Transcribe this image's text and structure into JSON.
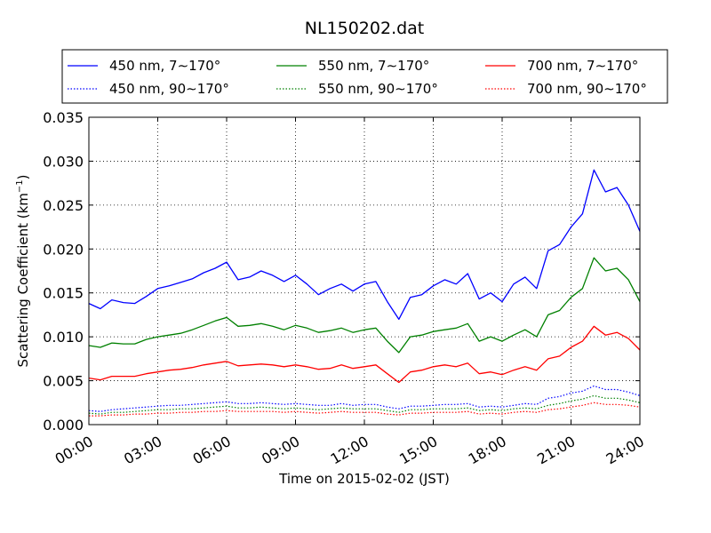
{
  "chart_data": {
    "type": "line",
    "title": "NL150202.dat",
    "xlabel": "Time on 2015-02-02 (JST)",
    "ylabel_main": "Scattering Coefficient (km",
    "ylabel_sup": "−1",
    "ylabel_end": ")",
    "xlim": [
      0,
      24
    ],
    "ylim": [
      0,
      0.035
    ],
    "grid": true,
    "legend_position": "top",
    "xticks": [
      0,
      3,
      6,
      9,
      12,
      15,
      18,
      21,
      24
    ],
    "xtick_labels": [
      "00:00",
      "03:00",
      "06:00",
      "09:00",
      "12:00",
      "15:00",
      "18:00",
      "21:00",
      "24:00"
    ],
    "yticks": [
      0,
      0.005,
      0.01,
      0.015,
      0.02,
      0.025,
      0.03,
      0.035
    ],
    "ytick_labels": [
      "0.000",
      "0.005",
      "0.010",
      "0.015",
      "0.020",
      "0.025",
      "0.030",
      "0.035"
    ],
    "x": [
      0,
      0.5,
      1,
      1.5,
      2,
      2.5,
      3,
      3.5,
      4,
      4.5,
      5,
      5.5,
      6,
      6.5,
      7,
      7.5,
      8,
      8.5,
      9,
      9.5,
      10,
      10.5,
      11,
      11.5,
      12,
      12.5,
      13,
      13.5,
      14,
      14.5,
      15,
      15.5,
      16,
      16.5,
      17,
      17.5,
      18,
      18.5,
      19,
      19.5,
      20,
      20.5,
      21,
      21.5,
      22,
      22.5,
      23,
      23.5,
      24
    ],
    "series": [
      {
        "name": "450 nm, 7∼170°",
        "color": "#0000ff",
        "style": "solid",
        "values": [
          0.0138,
          0.0132,
          0.0142,
          0.0139,
          0.0138,
          0.0146,
          0.0155,
          0.0158,
          0.0162,
          0.0166,
          0.0173,
          0.0178,
          0.0185,
          0.0165,
          0.0168,
          0.0175,
          0.017,
          0.0163,
          0.017,
          0.016,
          0.0148,
          0.0155,
          0.016,
          0.0152,
          0.016,
          0.0163,
          0.014,
          0.012,
          0.0145,
          0.0148,
          0.0158,
          0.0165,
          0.016,
          0.0172,
          0.0143,
          0.015,
          0.014,
          0.016,
          0.0168,
          0.0155,
          0.0198,
          0.0205,
          0.0225,
          0.024,
          0.029,
          0.0265,
          0.027,
          0.025,
          0.022
        ]
      },
      {
        "name": "550 nm, 7∼170°",
        "color": "#008000",
        "style": "solid",
        "values": [
          0.009,
          0.0088,
          0.0093,
          0.0092,
          0.0092,
          0.0097,
          0.01,
          0.0102,
          0.0104,
          0.0108,
          0.0113,
          0.0118,
          0.0122,
          0.0112,
          0.0113,
          0.0115,
          0.0112,
          0.0108,
          0.0113,
          0.011,
          0.0105,
          0.0107,
          0.011,
          0.0105,
          0.0108,
          0.011,
          0.0095,
          0.0082,
          0.01,
          0.0102,
          0.0106,
          0.0108,
          0.011,
          0.0115,
          0.0095,
          0.01,
          0.0095,
          0.0102,
          0.0108,
          0.01,
          0.0125,
          0.013,
          0.0145,
          0.0155,
          0.019,
          0.0175,
          0.0178,
          0.0165,
          0.014
        ]
      },
      {
        "name": "700 nm, 7∼170°",
        "color": "#ff0000",
        "style": "solid",
        "values": [
          0.0053,
          0.0051,
          0.0055,
          0.0055,
          0.0055,
          0.0058,
          0.006,
          0.0062,
          0.0063,
          0.0065,
          0.0068,
          0.007,
          0.0072,
          0.0067,
          0.0068,
          0.0069,
          0.0068,
          0.0066,
          0.0068,
          0.0066,
          0.0063,
          0.0064,
          0.0068,
          0.0064,
          0.0066,
          0.0068,
          0.0058,
          0.0048,
          0.006,
          0.0062,
          0.0066,
          0.0068,
          0.0066,
          0.007,
          0.0058,
          0.006,
          0.0057,
          0.0062,
          0.0066,
          0.0062,
          0.0075,
          0.0078,
          0.0088,
          0.0095,
          0.0112,
          0.0102,
          0.0105,
          0.0098,
          0.0085
        ]
      },
      {
        "name": "450 nm, 90∼170°",
        "color": "#0000ff",
        "style": "dotted",
        "values": [
          0.0016,
          0.0015,
          0.0017,
          0.0018,
          0.0019,
          0.002,
          0.0021,
          0.0022,
          0.0022,
          0.0023,
          0.0024,
          0.0025,
          0.0026,
          0.0024,
          0.0024,
          0.0025,
          0.0024,
          0.0023,
          0.0024,
          0.0023,
          0.0022,
          0.0022,
          0.0024,
          0.0022,
          0.0023,
          0.0023,
          0.002,
          0.0018,
          0.0021,
          0.0021,
          0.0022,
          0.0023,
          0.0023,
          0.0024,
          0.002,
          0.0021,
          0.002,
          0.0022,
          0.0024,
          0.0023,
          0.003,
          0.0032,
          0.0036,
          0.0038,
          0.0044,
          0.004,
          0.004,
          0.0037,
          0.0033
        ]
      },
      {
        "name": "550 nm, 90∼170°",
        "color": "#008000",
        "style": "dotted",
        "values": [
          0.0013,
          0.0012,
          0.0014,
          0.0014,
          0.0015,
          0.0016,
          0.0017,
          0.0017,
          0.0018,
          0.0018,
          0.0019,
          0.002,
          0.0021,
          0.0019,
          0.0019,
          0.002,
          0.0019,
          0.0018,
          0.0019,
          0.0018,
          0.0017,
          0.0018,
          0.0019,
          0.0018,
          0.0018,
          0.0018,
          0.0016,
          0.0014,
          0.0017,
          0.0017,
          0.0018,
          0.0018,
          0.0018,
          0.0019,
          0.0016,
          0.0017,
          0.0016,
          0.0018,
          0.0019,
          0.0018,
          0.0022,
          0.0024,
          0.0027,
          0.0029,
          0.0033,
          0.003,
          0.003,
          0.0028,
          0.0025
        ]
      },
      {
        "name": "700 nm, 90∼170°",
        "color": "#ff0000",
        "style": "dotted",
        "values": [
          0.001,
          0.001,
          0.0011,
          0.0011,
          0.0012,
          0.0012,
          0.0013,
          0.0013,
          0.0014,
          0.0014,
          0.0015,
          0.0015,
          0.0016,
          0.0015,
          0.0015,
          0.0015,
          0.0015,
          0.0014,
          0.0015,
          0.0014,
          0.0013,
          0.0014,
          0.0015,
          0.0014,
          0.0014,
          0.0014,
          0.0012,
          0.0011,
          0.0013,
          0.0013,
          0.0014,
          0.0014,
          0.0014,
          0.0015,
          0.0012,
          0.0013,
          0.0012,
          0.0014,
          0.0015,
          0.0014,
          0.0017,
          0.0018,
          0.002,
          0.0022,
          0.0025,
          0.0023,
          0.0023,
          0.0022,
          0.002
        ]
      }
    ]
  }
}
